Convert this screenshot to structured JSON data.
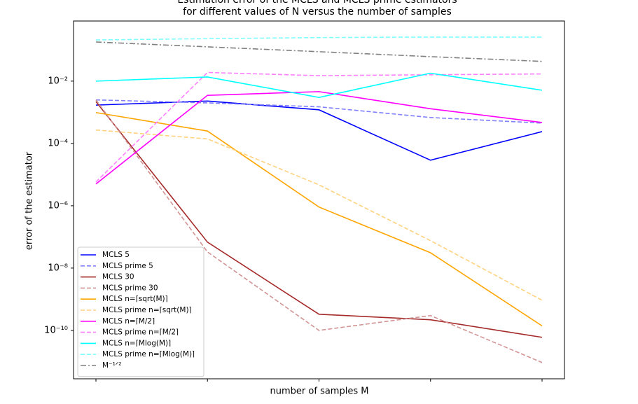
{
  "chart_data": {
    "type": "line",
    "title": [
      "Estimation error of the MCLS and MCLS prime estimators",
      "for different values of N versus the number of samples"
    ],
    "x_label": "number of samples M",
    "y_label": "error of the estimator",
    "categories": [
      null,
      null,
      null,
      null,
      null
    ],
    "ylog": true,
    "ylim": [
      2.8e-12,
      0.85
    ],
    "yticks": [
      {
        "value": 0.01,
        "label": "10⁻²"
      },
      {
        "value": 0.0001,
        "label": "10⁻⁴"
      },
      {
        "value": 1e-06,
        "label": "10⁻⁶"
      },
      {
        "value": 1e-08,
        "label": "10⁻⁸"
      },
      {
        "value": 1e-10,
        "label": "10⁻¹⁰"
      }
    ],
    "legend": "lower left",
    "series": [
      {
        "name": "MCLS 5",
        "color": "#0000ff",
        "linestyle": "solid",
        "values": [
          0.0017,
          0.0023,
          0.0012,
          2.9e-05,
          0.00024
        ]
      },
      {
        "name": "MCLS prime 5",
        "color": "#8080ff",
        "linestyle": "dashed",
        "values": [
          0.0025,
          0.002,
          0.0015,
          0.00068,
          0.00045
        ]
      },
      {
        "name": "MCLS 30",
        "color": "#a52a2a",
        "linestyle": "solid",
        "values": [
          0.0022,
          6.8e-08,
          3.3e-10,
          2.2e-10,
          6e-11
        ]
      },
      {
        "name": "MCLS prime 30",
        "color": "#d29494",
        "linestyle": "dashed",
        "values": [
          0.0025,
          3.3e-08,
          1e-10,
          3e-10,
          9.3e-12
        ]
      },
      {
        "name": "MCLS n=⌈sqrt(M)⌉",
        "color": "#ffa500",
        "linestyle": "solid",
        "values": [
          0.00098,
          0.00025,
          9.1e-07,
          3.1e-08,
          1.4e-10
        ]
      },
      {
        "name": "MCLS prime n=⌈sqrt(M)⌉",
        "color": "#ffd280",
        "linestyle": "dashed",
        "values": [
          0.00027,
          0.00014,
          4.7e-06,
          7.6e-08,
          9.3e-10
        ]
      },
      {
        "name": "MCLS n=⌈M/2⌉",
        "color": "#ff00ff",
        "linestyle": "solid",
        "values": [
          5e-06,
          0.0035,
          0.0046,
          0.0013,
          0.00047
        ]
      },
      {
        "name": "MCLS prime n=⌈M/2⌉",
        "color": "#ff80ff",
        "linestyle": "dashed",
        "values": [
          5.8e-06,
          0.019,
          0.015,
          0.016,
          0.017
        ]
      },
      {
        "name": "MCLS n=⌈Mlog(M)⌉",
        "color": "#00ffff",
        "linestyle": "solid",
        "values": [
          0.01,
          0.0136,
          0.003,
          0.018,
          0.0051
        ]
      },
      {
        "name": "MCLS prime n=⌈Mlog(M)⌉",
        "color": "#80ffff",
        "linestyle": "dashed",
        "values": [
          0.21,
          0.23,
          0.25,
          0.26,
          0.26
        ]
      },
      {
        "name": "M⁻¹ᐟ²",
        "color": "#808080",
        "linestyle": "dashdot",
        "values": [
          0.18,
          0.126,
          0.088,
          0.061,
          0.043
        ]
      }
    ]
  }
}
